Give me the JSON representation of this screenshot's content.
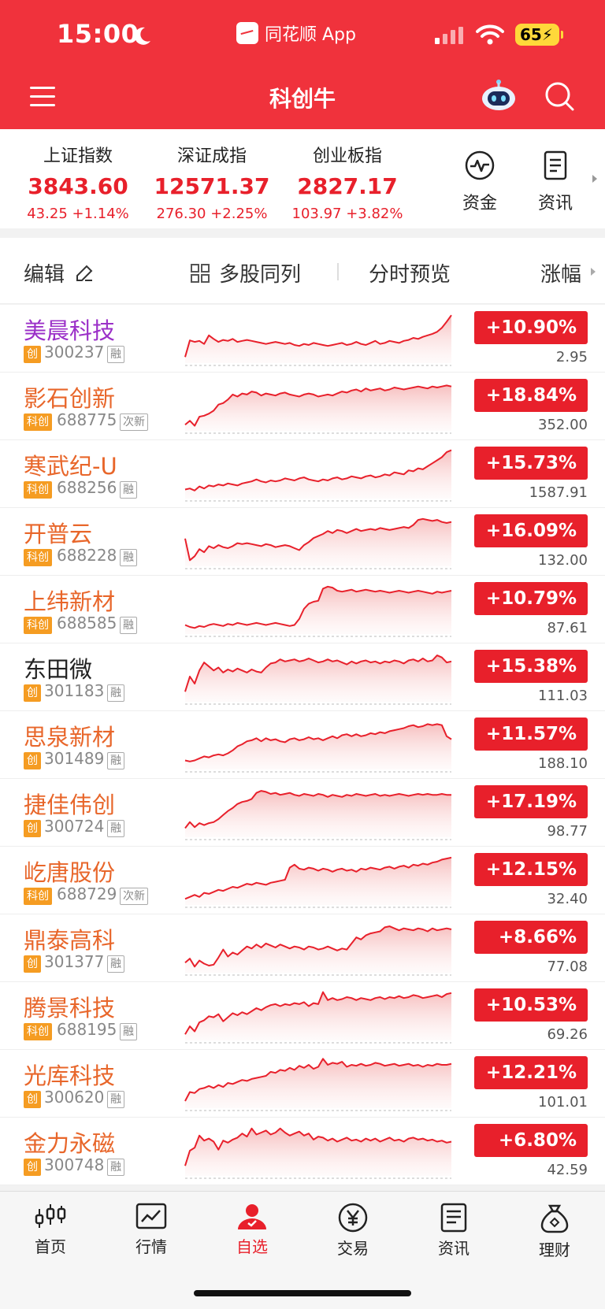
{
  "status_bar": {
    "time": "15:00",
    "app_name": "同花顺 App",
    "battery": "65"
  },
  "header": {
    "title": "科创牛",
    "menu_icon": "menu-icon",
    "robot_icon": "robot-icon",
    "search_icon": "search-icon",
    "bg_color": "#f0323c"
  },
  "indices": [
    {
      "name": "上证指数",
      "value": "3843.60",
      "change": "43.25 +1.14%"
    },
    {
      "name": "深证成指",
      "value": "12571.37",
      "change": "276.30 +2.25%"
    },
    {
      "name": "创业板指",
      "value": "2827.17",
      "change": "103.97 +3.82%"
    }
  ],
  "quick_buttons": [
    {
      "label": "资金",
      "icon": "pulse-icon"
    },
    {
      "label": "资讯",
      "icon": "document-icon"
    }
  ],
  "toolbar": {
    "edit": "编辑",
    "multi": "多股同列",
    "preview": "分时预览",
    "sort": "涨幅"
  },
  "stocks": [
    {
      "name": "美晨科技",
      "color": "purple",
      "tag": "创",
      "code": "300237",
      "fin": "融",
      "change": "+10.90%",
      "price": "2.95",
      "trend": [
        0.12,
        0.45,
        0.42,
        0.44,
        0.38,
        0.55,
        0.48,
        0.42,
        0.46,
        0.44,
        0.48,
        0.42,
        0.44,
        0.46,
        0.44,
        0.42,
        0.4,
        0.38,
        0.4,
        0.42,
        0.4,
        0.38,
        0.4,
        0.36,
        0.34,
        0.38,
        0.36,
        0.4,
        0.38,
        0.36,
        0.34,
        0.36,
        0.38,
        0.4,
        0.36,
        0.38,
        0.42,
        0.38,
        0.36,
        0.4,
        0.44,
        0.38,
        0.4,
        0.44,
        0.42,
        0.4,
        0.44,
        0.46,
        0.5,
        0.48,
        0.52,
        0.55,
        0.58,
        0.62,
        0.7,
        0.82,
        0.95
      ]
    },
    {
      "name": "影石创新",
      "color": "orange",
      "tag": "科创",
      "code": "688775",
      "fin": "次新",
      "change": "+18.84%",
      "price": "352.00",
      "trend": [
        0.12,
        0.2,
        0.1,
        0.28,
        0.3,
        0.34,
        0.4,
        0.52,
        0.55,
        0.62,
        0.72,
        0.68,
        0.74,
        0.72,
        0.78,
        0.76,
        0.7,
        0.74,
        0.72,
        0.7,
        0.74,
        0.76,
        0.72,
        0.7,
        0.68,
        0.72,
        0.74,
        0.72,
        0.68,
        0.7,
        0.72,
        0.7,
        0.74,
        0.78,
        0.76,
        0.8,
        0.82,
        0.78,
        0.84,
        0.8,
        0.82,
        0.84,
        0.8,
        0.82,
        0.86,
        0.84,
        0.82,
        0.84,
        0.86,
        0.88,
        0.86,
        0.84,
        0.88,
        0.86,
        0.88,
        0.9,
        0.88
      ]
    },
    {
      "name": "寒武纪-U",
      "color": "orange",
      "tag": "科创",
      "code": "688256",
      "fin": "融",
      "change": "+15.73%",
      "price": "1587.91",
      "trend": [
        0.18,
        0.2,
        0.16,
        0.24,
        0.2,
        0.26,
        0.24,
        0.28,
        0.26,
        0.3,
        0.28,
        0.26,
        0.3,
        0.32,
        0.34,
        0.38,
        0.34,
        0.32,
        0.36,
        0.34,
        0.36,
        0.4,
        0.38,
        0.36,
        0.4,
        0.42,
        0.38,
        0.36,
        0.34,
        0.38,
        0.36,
        0.4,
        0.42,
        0.38,
        0.4,
        0.44,
        0.42,
        0.4,
        0.44,
        0.46,
        0.42,
        0.44,
        0.48,
        0.46,
        0.52,
        0.5,
        0.48,
        0.56,
        0.54,
        0.6,
        0.58,
        0.64,
        0.7,
        0.76,
        0.82,
        0.92,
        0.96
      ]
    },
    {
      "name": "开普云",
      "color": "orange",
      "tag": "科创",
      "code": "688228",
      "fin": "融",
      "change": "+16.09%",
      "price": "132.00",
      "trend": [
        0.55,
        0.12,
        0.2,
        0.34,
        0.28,
        0.4,
        0.36,
        0.42,
        0.38,
        0.36,
        0.4,
        0.46,
        0.44,
        0.46,
        0.44,
        0.42,
        0.4,
        0.44,
        0.42,
        0.38,
        0.4,
        0.42,
        0.4,
        0.36,
        0.32,
        0.42,
        0.48,
        0.56,
        0.6,
        0.64,
        0.7,
        0.66,
        0.72,
        0.7,
        0.66,
        0.7,
        0.74,
        0.7,
        0.72,
        0.74,
        0.72,
        0.76,
        0.74,
        0.72,
        0.74,
        0.76,
        0.78,
        0.76,
        0.82,
        0.92,
        0.94,
        0.92,
        0.9,
        0.92,
        0.88,
        0.86,
        0.88
      ]
    },
    {
      "name": "上纬新材",
      "color": "orange",
      "tag": "科创",
      "code": "688585",
      "fin": "融",
      "change": "+10.79%",
      "price": "87.61",
      "trend": [
        0.18,
        0.14,
        0.12,
        0.16,
        0.14,
        0.18,
        0.2,
        0.18,
        0.16,
        0.2,
        0.18,
        0.22,
        0.2,
        0.18,
        0.2,
        0.22,
        0.2,
        0.18,
        0.2,
        0.22,
        0.2,
        0.18,
        0.16,
        0.18,
        0.3,
        0.5,
        0.6,
        0.64,
        0.66,
        0.9,
        0.94,
        0.92,
        0.86,
        0.84,
        0.86,
        0.88,
        0.84,
        0.86,
        0.88,
        0.86,
        0.84,
        0.86,
        0.84,
        0.82,
        0.84,
        0.86,
        0.84,
        0.82,
        0.84,
        0.86,
        0.84,
        0.82,
        0.8,
        0.84,
        0.82,
        0.84,
        0.86
      ]
    },
    {
      "name": "东田微",
      "color": "black",
      "tag": "创",
      "code": "301183",
      "fin": "融",
      "change": "+15.38%",
      "price": "111.03",
      "trend": [
        0.2,
        0.5,
        0.36,
        0.62,
        0.78,
        0.7,
        0.62,
        0.68,
        0.58,
        0.64,
        0.6,
        0.66,
        0.62,
        0.58,
        0.64,
        0.6,
        0.58,
        0.68,
        0.76,
        0.78,
        0.84,
        0.8,
        0.82,
        0.84,
        0.8,
        0.82,
        0.86,
        0.82,
        0.78,
        0.8,
        0.84,
        0.8,
        0.82,
        0.78,
        0.74,
        0.8,
        0.76,
        0.8,
        0.82,
        0.78,
        0.8,
        0.76,
        0.8,
        0.78,
        0.82,
        0.8,
        0.76,
        0.82,
        0.84,
        0.8,
        0.86,
        0.8,
        0.82,
        0.92,
        0.88,
        0.78,
        0.8
      ]
    },
    {
      "name": "思泉新材",
      "color": "orange",
      "tag": "创",
      "code": "301489",
      "fin": "融",
      "change": "+11.57%",
      "price": "188.10",
      "trend": [
        0.18,
        0.16,
        0.18,
        0.22,
        0.26,
        0.24,
        0.28,
        0.3,
        0.28,
        0.32,
        0.38,
        0.46,
        0.5,
        0.56,
        0.58,
        0.62,
        0.56,
        0.62,
        0.58,
        0.6,
        0.56,
        0.54,
        0.6,
        0.62,
        0.58,
        0.6,
        0.64,
        0.6,
        0.62,
        0.58,
        0.62,
        0.66,
        0.62,
        0.68,
        0.7,
        0.66,
        0.7,
        0.66,
        0.68,
        0.72,
        0.7,
        0.74,
        0.72,
        0.76,
        0.78,
        0.8,
        0.82,
        0.86,
        0.88,
        0.84,
        0.86,
        0.9,
        0.88,
        0.9,
        0.88,
        0.66,
        0.6
      ]
    },
    {
      "name": "捷佳伟创",
      "color": "orange",
      "tag": "创",
      "code": "300724",
      "fin": "融",
      "change": "+17.19%",
      "price": "98.77",
      "trend": [
        0.18,
        0.3,
        0.2,
        0.28,
        0.24,
        0.28,
        0.3,
        0.36,
        0.44,
        0.52,
        0.58,
        0.66,
        0.7,
        0.72,
        0.76,
        0.88,
        0.92,
        0.9,
        0.86,
        0.88,
        0.84,
        0.86,
        0.88,
        0.84,
        0.82,
        0.86,
        0.84,
        0.82,
        0.86,
        0.84,
        0.8,
        0.84,
        0.82,
        0.8,
        0.84,
        0.82,
        0.86,
        0.84,
        0.82,
        0.84,
        0.86,
        0.82,
        0.84,
        0.82,
        0.84,
        0.86,
        0.84,
        0.82,
        0.84,
        0.86,
        0.84,
        0.86,
        0.84,
        0.84,
        0.86,
        0.84,
        0.84
      ]
    },
    {
      "name": "屹唐股份",
      "color": "orange",
      "tag": "科创",
      "code": "688729",
      "fin": "次新",
      "change": "+12.15%",
      "price": "32.40",
      "trend": [
        0.12,
        0.16,
        0.2,
        0.16,
        0.24,
        0.22,
        0.26,
        0.3,
        0.28,
        0.32,
        0.36,
        0.34,
        0.38,
        0.42,
        0.4,
        0.44,
        0.42,
        0.4,
        0.44,
        0.46,
        0.48,
        0.5,
        0.74,
        0.8,
        0.72,
        0.7,
        0.74,
        0.72,
        0.68,
        0.72,
        0.7,
        0.66,
        0.7,
        0.72,
        0.68,
        0.7,
        0.66,
        0.72,
        0.7,
        0.74,
        0.72,
        0.7,
        0.74,
        0.76,
        0.72,
        0.76,
        0.78,
        0.74,
        0.8,
        0.78,
        0.82,
        0.8,
        0.84,
        0.86,
        0.9,
        0.92,
        0.94
      ]
    },
    {
      "name": "鼎泰高科",
      "color": "orange",
      "tag": "创",
      "code": "301377",
      "fin": "融",
      "change": "+8.66%",
      "price": "77.08",
      "trend": [
        0.2,
        0.28,
        0.12,
        0.24,
        0.18,
        0.14,
        0.16,
        0.3,
        0.46,
        0.32,
        0.4,
        0.36,
        0.44,
        0.52,
        0.48,
        0.56,
        0.5,
        0.58,
        0.54,
        0.5,
        0.56,
        0.52,
        0.48,
        0.52,
        0.5,
        0.46,
        0.52,
        0.5,
        0.46,
        0.48,
        0.52,
        0.48,
        0.44,
        0.48,
        0.46,
        0.58,
        0.7,
        0.66,
        0.74,
        0.78,
        0.8,
        0.82,
        0.9,
        0.92,
        0.88,
        0.84,
        0.88,
        0.86,
        0.84,
        0.88,
        0.86,
        0.82,
        0.88,
        0.84,
        0.86,
        0.88,
        0.86
      ]
    },
    {
      "name": "腾景科技",
      "color": "orange",
      "tag": "科创",
      "code": "688195",
      "fin": "融",
      "change": "+10.53%",
      "price": "69.26",
      "trend": [
        0.12,
        0.28,
        0.18,
        0.36,
        0.4,
        0.48,
        0.46,
        0.52,
        0.38,
        0.46,
        0.54,
        0.5,
        0.56,
        0.52,
        0.58,
        0.64,
        0.6,
        0.66,
        0.7,
        0.72,
        0.68,
        0.72,
        0.7,
        0.74,
        0.72,
        0.76,
        0.68,
        0.74,
        0.72,
        0.96,
        0.8,
        0.84,
        0.8,
        0.82,
        0.86,
        0.84,
        0.8,
        0.84,
        0.82,
        0.8,
        0.84,
        0.86,
        0.82,
        0.86,
        0.84,
        0.88,
        0.84,
        0.86,
        0.9,
        0.88,
        0.84,
        0.86,
        0.88,
        0.9,
        0.86,
        0.92,
        0.94
      ]
    },
    {
      "name": "光库科技",
      "color": "orange",
      "tag": "创",
      "code": "300620",
      "fin": "融",
      "change": "+12.21%",
      "price": "101.01",
      "trend": [
        0.14,
        0.32,
        0.3,
        0.38,
        0.4,
        0.44,
        0.4,
        0.46,
        0.42,
        0.5,
        0.48,
        0.52,
        0.56,
        0.54,
        0.58,
        0.6,
        0.62,
        0.64,
        0.72,
        0.7,
        0.76,
        0.74,
        0.8,
        0.76,
        0.84,
        0.8,
        0.86,
        0.78,
        0.82,
        0.98,
        0.86,
        0.9,
        0.88,
        0.92,
        0.82,
        0.86,
        0.84,
        0.88,
        0.84,
        0.86,
        0.9,
        0.88,
        0.84,
        0.86,
        0.88,
        0.84,
        0.86,
        0.88,
        0.84,
        0.86,
        0.82,
        0.86,
        0.84,
        0.88,
        0.86,
        0.86,
        0.88
      ]
    },
    {
      "name": "金力永磁",
      "color": "orange",
      "tag": "创",
      "code": "300748",
      "fin": "融",
      "change": "+6.80%",
      "price": "42.59",
      "trend": [
        0.2,
        0.5,
        0.56,
        0.8,
        0.7,
        0.74,
        0.68,
        0.52,
        0.7,
        0.66,
        0.72,
        0.76,
        0.84,
        0.78,
        0.94,
        0.82,
        0.86,
        0.9,
        0.82,
        0.86,
        0.94,
        0.86,
        0.8,
        0.84,
        0.88,
        0.8,
        0.84,
        0.72,
        0.78,
        0.76,
        0.7,
        0.74,
        0.68,
        0.72,
        0.76,
        0.7,
        0.72,
        0.68,
        0.74,
        0.7,
        0.74,
        0.68,
        0.72,
        0.76,
        0.7,
        0.72,
        0.68,
        0.74,
        0.76,
        0.72,
        0.74,
        0.7,
        0.72,
        0.68,
        0.7,
        0.66,
        0.68
      ]
    }
  ],
  "tabs": [
    {
      "label": "首页",
      "icon": "home-candles-icon"
    },
    {
      "label": "行情",
      "icon": "chart-icon"
    },
    {
      "label": "自选",
      "icon": "person-star-icon",
      "active": true
    },
    {
      "label": "交易",
      "icon": "yen-icon"
    },
    {
      "label": "资讯",
      "icon": "news-icon"
    },
    {
      "label": "理财",
      "icon": "moneybag-icon"
    }
  ],
  "colors": {
    "up": "#e8202b",
    "accent": "#f0323c",
    "tag": "#f59c22",
    "name_orange": "#e8662a",
    "name_purple": "#9b30c8"
  }
}
